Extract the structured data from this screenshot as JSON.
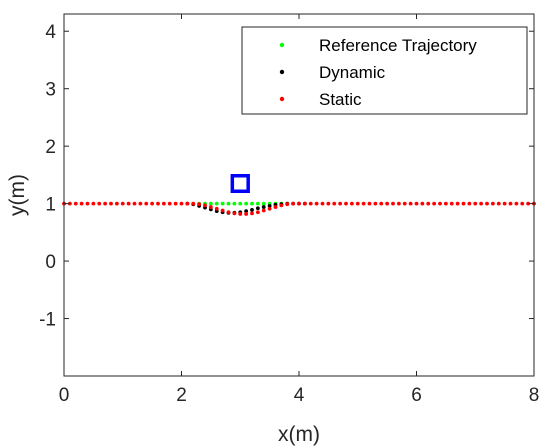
{
  "chart_data": {
    "type": "scatter",
    "title": "",
    "xlabel": "x(m)",
    "ylabel": "y(m)",
    "xlim": [
      0,
      8
    ],
    "ylim": [
      -2,
      4.3
    ],
    "xticks": [
      0,
      2,
      4,
      6,
      8
    ],
    "yticks": [
      -1,
      0,
      1,
      2,
      3,
      4
    ],
    "grid": false,
    "legend_position": "top-right",
    "series": [
      {
        "name": "Reference Trajectory",
        "color": "#00ff00",
        "x": [
          2.3,
          2.4,
          2.5,
          2.6,
          2.7,
          2.8,
          2.9,
          3.0,
          3.1,
          3.2,
          3.3,
          3.4,
          3.5,
          3.6,
          3.7
        ],
        "y": [
          1.0,
          1.0,
          1.0,
          1.0,
          1.0,
          1.0,
          1.0,
          1.0,
          1.0,
          1.0,
          1.0,
          1.0,
          1.0,
          1.0,
          1.0
        ]
      },
      {
        "name": "Dynamic",
        "color": "#000000",
        "x": [
          2.1,
          2.2,
          2.3,
          2.4,
          2.5,
          2.6,
          2.7,
          2.8,
          2.9,
          3.0,
          3.1,
          3.2,
          3.3,
          3.4,
          3.5,
          3.6,
          3.7,
          3.8,
          3.9,
          4.0,
          4.1
        ],
        "y": [
          1.0,
          0.99,
          0.96,
          0.93,
          0.9,
          0.87,
          0.85,
          0.84,
          0.84,
          0.85,
          0.87,
          0.89,
          0.92,
          0.94,
          0.96,
          0.98,
          0.99,
          1.0,
          1.0,
          1.0,
          1.0
        ]
      },
      {
        "name": "Static",
        "color": "#ff0000",
        "x": [
          0.0,
          0.1,
          0.2,
          0.3,
          0.4,
          0.5,
          0.6,
          0.7,
          0.8,
          0.9,
          1.0,
          1.1,
          1.2,
          1.3,
          1.4,
          1.5,
          1.6,
          1.7,
          1.8,
          1.9,
          2.0,
          2.1,
          2.2,
          2.3,
          2.4,
          2.5,
          2.6,
          2.7,
          2.8,
          2.9,
          3.0,
          3.1,
          3.2,
          3.3,
          3.4,
          3.5,
          3.6,
          3.7,
          3.8,
          3.9,
          4.0,
          4.1,
          4.2,
          4.3,
          4.4,
          4.5,
          4.6,
          4.7,
          4.8,
          4.9,
          5.0,
          5.1,
          5.2,
          5.3,
          5.4,
          5.5,
          5.6,
          5.7,
          5.8,
          5.9,
          6.0,
          6.1,
          6.2,
          6.3,
          6.4,
          6.5,
          6.6,
          6.7,
          6.8,
          6.9,
          7.0,
          7.1,
          7.2,
          7.3,
          7.4,
          7.5,
          7.6,
          7.7,
          7.8,
          7.9,
          8.0
        ],
        "y": [
          1.0,
          1.0,
          1.0,
          1.0,
          1.0,
          1.0,
          1.0,
          1.0,
          1.0,
          1.0,
          1.0,
          1.0,
          1.0,
          1.0,
          1.0,
          1.0,
          1.0,
          1.0,
          1.0,
          1.0,
          1.0,
          1.0,
          1.0,
          0.99,
          0.97,
          0.94,
          0.91,
          0.88,
          0.85,
          0.83,
          0.82,
          0.82,
          0.83,
          0.85,
          0.88,
          0.91,
          0.94,
          0.97,
          0.99,
          1.0,
          1.0,
          1.0,
          1.0,
          1.0,
          1.0,
          1.0,
          1.0,
          1.0,
          1.0,
          1.0,
          1.0,
          1.0,
          1.0,
          1.0,
          1.0,
          1.0,
          1.0,
          1.0,
          1.0,
          1.0,
          1.0,
          1.0,
          1.0,
          1.0,
          1.0,
          1.0,
          1.0,
          1.0,
          1.0,
          1.0,
          1.0,
          1.0,
          1.0,
          1.0,
          1.0,
          1.0,
          1.0,
          1.0,
          1.0,
          1.0,
          1.0
        ]
      }
    ],
    "obstacle": {
      "shape": "square",
      "color": "#0000ff",
      "x": 3.0,
      "y": 1.35,
      "size": 0.27
    }
  }
}
